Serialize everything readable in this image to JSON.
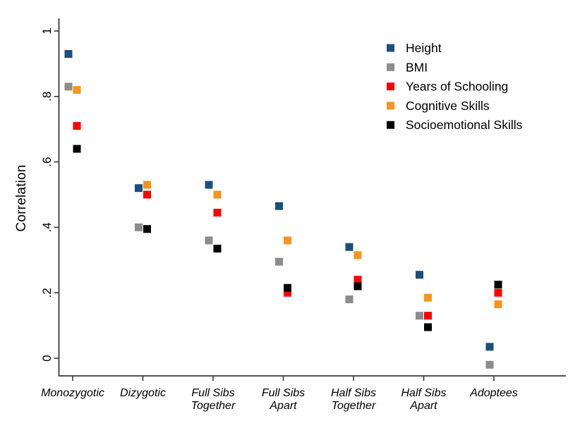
{
  "chart_data": {
    "type": "scatter",
    "marker": "square",
    "title": "",
    "xlabel": "",
    "ylabel": "Correlation",
    "ylim": [
      0,
      1
    ],
    "yticks": [
      1,
      0.8,
      0.6,
      0.4,
      0.2,
      0
    ],
    "ytick_labels": [
      "1",
      ".8",
      ".6",
      ".4",
      ".2",
      "0"
    ],
    "grid": false,
    "legend_position": "top-right",
    "categories": [
      "Monozygotic",
      "Dizygotic",
      "Full Sibs Together",
      "Full Sibs Apart",
      "Half Sibs Together",
      "Half Sibs Apart",
      "Adoptees"
    ],
    "category_label_lines": [
      [
        "Monozygotic"
      ],
      [
        "Dizygotic"
      ],
      [
        "Full Sibs",
        "Together"
      ],
      [
        "Full Sibs",
        "Apart"
      ],
      [
        "Half Sibs",
        "Together"
      ],
      [
        "Half Sibs",
        "Apart"
      ],
      [
        "Adoptees"
      ]
    ],
    "series": [
      {
        "name": "Height",
        "color": "#1c4f7c",
        "values": [
          0.93,
          0.52,
          0.53,
          0.465,
          0.34,
          0.255,
          0.035
        ]
      },
      {
        "name": "BMI",
        "color": "#8c8c8c",
        "values": [
          0.83,
          0.4,
          0.36,
          0.295,
          0.18,
          0.13,
          -0.02
        ]
      },
      {
        "name": "Years of Schooling",
        "color": "#fe0000",
        "values": [
          0.71,
          0.5,
          0.445,
          0.2,
          0.24,
          0.13,
          0.2
        ]
      },
      {
        "name": "Cognitive Skills",
        "color": "#f7941d",
        "values": [
          0.82,
          0.53,
          0.5,
          0.36,
          0.315,
          0.185,
          0.165
        ]
      },
      {
        "name": "Socioemotional Skills",
        "color": "#000000",
        "values": [
          0.64,
          0.395,
          0.335,
          0.215,
          0.22,
          0.095,
          0.225
        ]
      }
    ],
    "axis_color": "#3a3a3a",
    "text_color": "#000000"
  }
}
